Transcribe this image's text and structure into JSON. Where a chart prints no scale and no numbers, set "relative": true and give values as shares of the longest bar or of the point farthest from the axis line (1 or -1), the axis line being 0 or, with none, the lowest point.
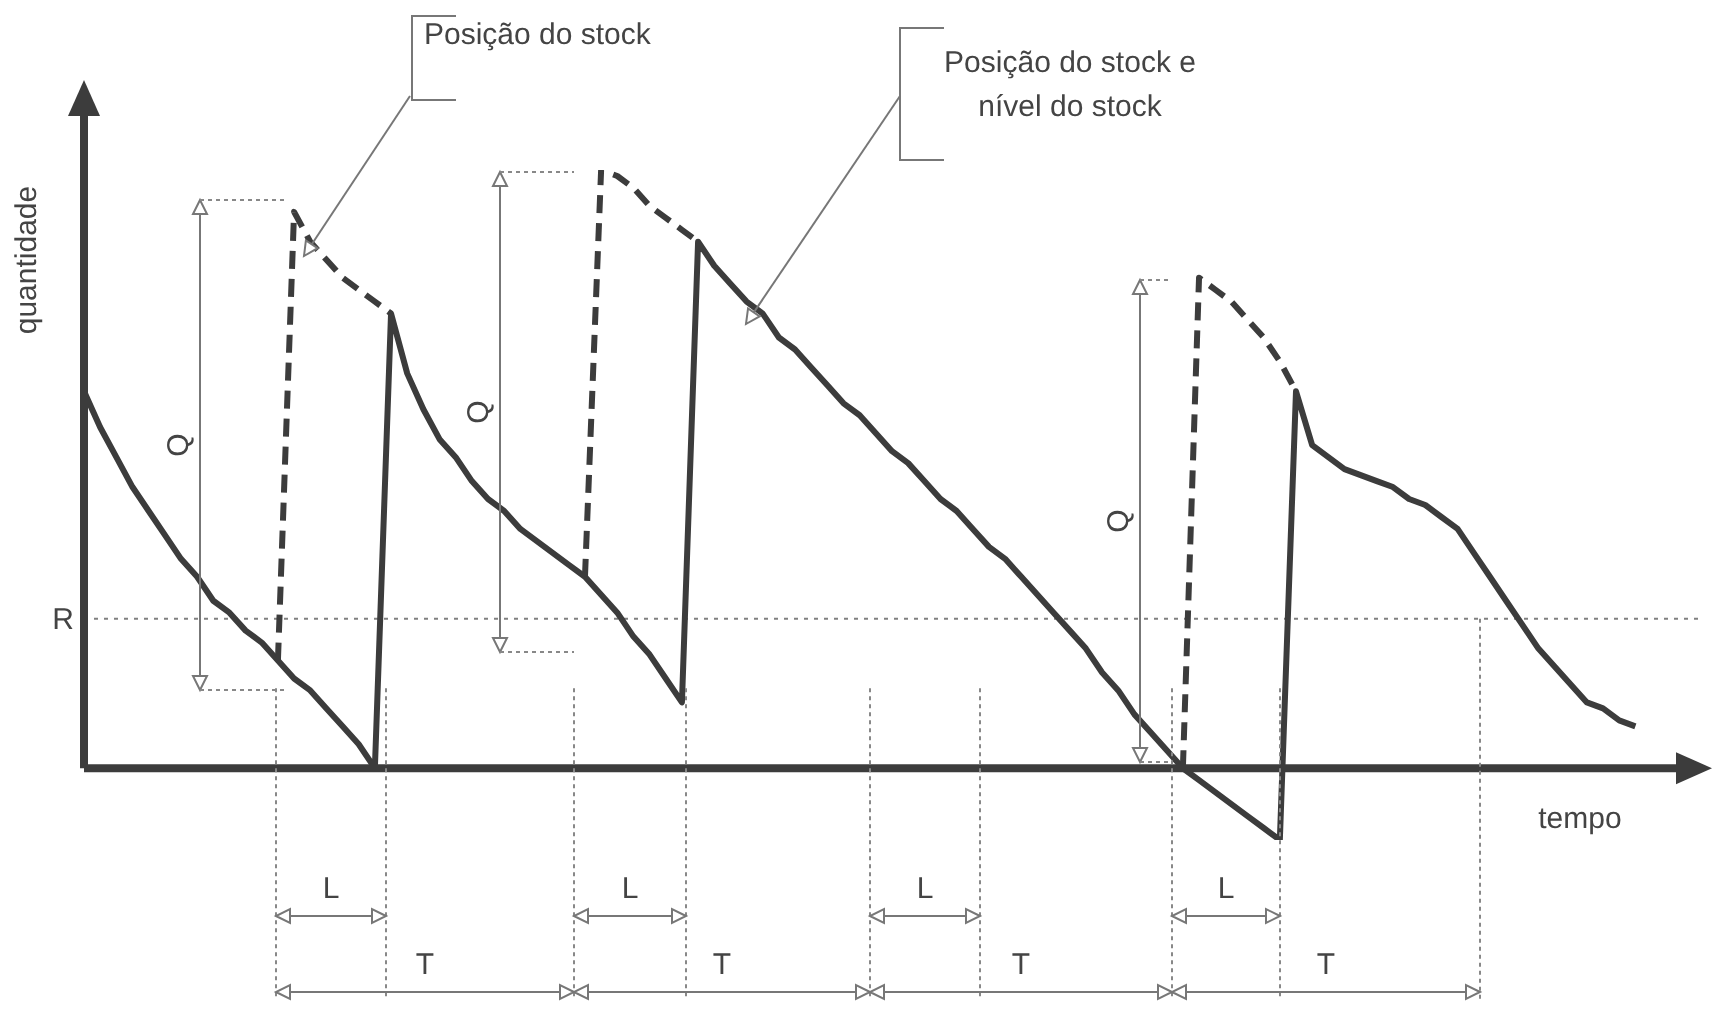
{
  "chart_data": {
    "type": "line",
    "relative": true,
    "xlabel": "tempo",
    "ylabel": "quantidade",
    "categories": [
      null,
      null,
      null,
      null,
      null,
      null,
      null,
      null,
      null,
      null,
      null,
      null,
      null,
      null,
      null,
      null,
      null,
      null,
      null,
      null,
      null,
      null,
      null,
      null,
      null,
      null,
      null,
      null,
      null,
      null,
      null,
      null,
      null,
      null,
      null,
      null,
      null,
      null,
      null,
      null,
      null,
      null,
      null,
      null,
      null,
      null,
      null,
      null,
      null,
      null,
      null,
      null,
      null,
      null,
      null,
      null,
      null,
      null,
      null,
      null,
      null,
      null,
      null,
      null,
      null,
      null,
      null,
      null,
      null,
      null,
      null,
      null,
      null,
      null,
      null,
      null,
      null,
      null,
      null,
      null,
      null,
      null,
      null,
      null,
      null,
      null,
      null,
      null,
      null,
      null,
      null,
      null,
      null,
      null,
      null,
      null,
      null,
      null,
      null,
      null,
      null
    ],
    "series": [
      {
        "color": "#3c3c3c",
        "line_style": "solid",
        "values": [
          0.63,
          0.57,
          0.52,
          0.47,
          0.43,
          0.39,
          0.35,
          0.32,
          0.28,
          0.26,
          0.23,
          0.21,
          0.18,
          0.15,
          0.13,
          0.1,
          0.07,
          0.04,
          0,
          0.76,
          0.66,
          0.6,
          0.55,
          0.52,
          0.48,
          0.45,
          0.43,
          0.4,
          0.38,
          0.36,
          0.34,
          0.32,
          0.29,
          0.26,
          0.22,
          0.19,
          0.15,
          0.11,
          0.88,
          0.84,
          0.81,
          0.78,
          0.76,
          0.72,
          0.7,
          0.67,
          0.64,
          0.61,
          0.59,
          0.56,
          0.53,
          0.51,
          0.48,
          0.45,
          0.43,
          0.4,
          0.37,
          0.35,
          0.32,
          0.29,
          0.26,
          0.23,
          0.2,
          0.16,
          0.13,
          0.09,
          0.06,
          0.03,
          0,
          -0.02,
          -0.04,
          -0.06,
          -0.08,
          -0.1,
          -0.12,
          0.63,
          0.54,
          0.52,
          0.5,
          0.49,
          0.48,
          0.47,
          0.45,
          0.44,
          0.42,
          0.4,
          0.36,
          0.32,
          0.28,
          0.24,
          0.2,
          0.17,
          0.14,
          0.11,
          0.1,
          0.08,
          0.07,
          null,
          null,
          null,
          null
        ]
      },
      {
        "color": "#3c3c3c",
        "line_style": "dashed",
        "values": [
          null,
          null,
          null,
          null,
          null,
          null,
          null,
          null,
          null,
          null,
          null,
          null,
          0.18,
          0.93,
          0.88,
          0.85,
          0.82,
          0.8,
          0.78,
          0.76,
          null,
          null,
          null,
          null,
          null,
          null,
          null,
          null,
          null,
          null,
          null,
          null,
          null,
          null,
          null,
          null,
          null,
          null,
          null,
          null,
          null,
          null,
          null,
          null,
          null,
          null,
          null,
          null,
          null,
          null,
          null,
          null,
          null,
          null,
          null,
          null,
          null,
          null,
          null,
          null,
          null,
          null,
          null,
          null,
          null,
          null,
          null,
          null,
          null,
          null,
          null,
          null,
          null,
          null,
          null,
          null,
          null,
          null,
          null,
          null,
          null,
          null,
          null,
          null,
          null,
          null,
          null,
          null,
          null,
          null,
          null,
          null,
          null,
          null,
          null,
          null,
          null,
          null,
          null,
          null,
          null
        ]
      },
      {
        "color": "#3c3c3c",
        "line_style": "dashed",
        "values": [
          null,
          null,
          null,
          null,
          null,
          null,
          null,
          null,
          null,
          null,
          null,
          null,
          null,
          null,
          null,
          null,
          null,
          null,
          null,
          null,
          null,
          null,
          null,
          null,
          null,
          null,
          null,
          null,
          null,
          null,
          null,
          0.32,
          1,
          0.99,
          0.97,
          0.94,
          0.92,
          0.9,
          0.88,
          null,
          null,
          null,
          null,
          null,
          null,
          null,
          null,
          null,
          null,
          null,
          null,
          null,
          null,
          null,
          null,
          null,
          null,
          null,
          null,
          null,
          null,
          null,
          null,
          null,
          null,
          null,
          null,
          null,
          null,
          null,
          null,
          null,
          null,
          null,
          null,
          null,
          null,
          null,
          null,
          null,
          null,
          null,
          null,
          null,
          null,
          null,
          null,
          null,
          null,
          null,
          null,
          null,
          null,
          null,
          null,
          null,
          null,
          null,
          null,
          null,
          null
        ]
      },
      {
        "color": "#3c3c3c",
        "line_style": "dashed",
        "values": [
          null,
          null,
          null,
          null,
          null,
          null,
          null,
          null,
          null,
          null,
          null,
          null,
          null,
          null,
          null,
          null,
          null,
          null,
          null,
          null,
          null,
          null,
          null,
          null,
          null,
          null,
          null,
          null,
          null,
          null,
          null,
          null,
          null,
          null,
          null,
          null,
          null,
          null,
          null,
          null,
          null,
          null,
          null,
          null,
          null,
          null,
          null,
          null,
          null,
          null,
          null,
          null,
          null,
          null,
          null,
          null,
          null,
          null,
          null,
          null,
          null,
          null,
          null,
          null,
          null,
          null,
          null,
          null,
          0,
          0.82,
          0.8,
          0.78,
          0.75,
          0.72,
          0.68,
          0.63,
          null,
          null,
          null,
          null,
          null,
          null,
          null,
          null,
          null,
          null,
          null,
          null,
          null,
          null,
          null,
          null,
          null,
          null,
          null,
          null,
          null,
          null,
          null,
          null,
          null
        ]
      }
    ],
    "ref_lines": [
      {
        "axis": "y",
        "value": 0.25,
        "label": "R",
        "color": "#808080",
        "line_style": "dotted"
      }
    ],
    "annotations": [
      "Posição do stock",
      "Posição do stock e nível do stock",
      "Q",
      "Q",
      "Q",
      "L",
      "L",
      "L",
      "L",
      "T",
      "T",
      "T",
      "T"
    ]
  }
}
